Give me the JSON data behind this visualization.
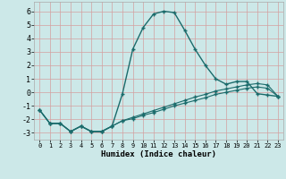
{
  "xlabel": "Humidex (Indice chaleur)",
  "xlim": [
    -0.5,
    23.5
  ],
  "ylim": [
    -3.5,
    6.7
  ],
  "yticks": [
    -3,
    -2,
    -1,
    0,
    1,
    2,
    3,
    4,
    5,
    6
  ],
  "xticks": [
    0,
    1,
    2,
    3,
    4,
    5,
    6,
    7,
    8,
    9,
    10,
    11,
    12,
    13,
    14,
    15,
    16,
    17,
    18,
    19,
    20,
    21,
    22,
    23
  ],
  "bg_color": "#cce8e8",
  "grid_color": "#c4d8d8",
  "line_color": "#1a6b6b",
  "lines": [
    {
      "x": [
        0,
        1,
        2,
        3,
        4,
        5,
        6,
        7,
        8,
        9,
        10,
        11,
        12,
        13,
        14,
        15,
        16,
        17,
        18,
        19,
        20,
        21,
        22,
        23
      ],
      "y": [
        -1.3,
        -2.3,
        -2.3,
        -2.9,
        -2.5,
        -2.9,
        -2.9,
        -2.5,
        -0.1,
        3.2,
        4.8,
        5.8,
        6.0,
        5.9,
        4.6,
        3.2,
        2.0,
        1.0,
        0.6,
        0.8,
        0.8,
        -0.1,
        -0.2,
        -0.3
      ]
    },
    {
      "x": [
        0,
        1,
        2,
        3,
        4,
        5,
        6,
        7,
        8,
        9,
        10,
        11,
        12,
        13,
        14,
        15,
        16,
        17,
        18,
        19,
        20,
        21,
        22,
        23
      ],
      "y": [
        -1.3,
        -2.3,
        -2.3,
        -2.9,
        -2.5,
        -2.9,
        -2.9,
        -2.5,
        -2.1,
        -1.85,
        -1.6,
        -1.35,
        -1.1,
        -0.85,
        -0.6,
        -0.35,
        -0.15,
        0.1,
        0.25,
        0.4,
        0.55,
        0.65,
        0.55,
        -0.3
      ]
    },
    {
      "x": [
        0,
        1,
        2,
        3,
        4,
        5,
        6,
        7,
        8,
        9,
        10,
        11,
        12,
        13,
        14,
        15,
        16,
        17,
        18,
        19,
        20,
        21,
        22,
        23
      ],
      "y": [
        -1.3,
        -2.3,
        -2.3,
        -2.9,
        -2.5,
        -2.9,
        -2.9,
        -2.5,
        -2.1,
        -1.95,
        -1.7,
        -1.5,
        -1.25,
        -1.0,
        -0.8,
        -0.6,
        -0.4,
        -0.15,
        0.0,
        0.15,
        0.3,
        0.4,
        0.3,
        -0.3
      ]
    }
  ]
}
